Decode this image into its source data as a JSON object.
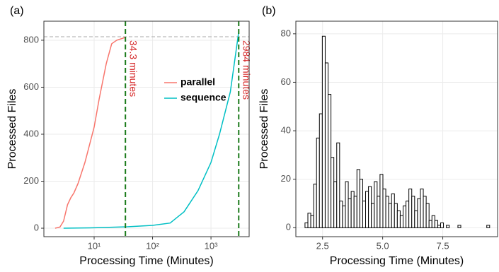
{
  "chart_data": [
    {
      "type": "line",
      "panel_label": "(a)",
      "x_label": "Processing Time (Minutes)",
      "y_label": "Processed Files",
      "xscale": "log",
      "xlim": [
        1.38,
        4500
      ],
      "ylim": [
        -36,
        881
      ],
      "xticks": [
        {
          "value": 10,
          "label": "10¹"
        },
        {
          "value": 100,
          "label": "10²"
        },
        {
          "value": 1000,
          "label": "10³"
        }
      ],
      "yticks": [
        0,
        200,
        400,
        600,
        800
      ],
      "grid": true,
      "hline": 815,
      "annotations": [
        {
          "x": 34.3,
          "text": "34.3 minutes"
        },
        {
          "x": 2984,
          "text": "2984 minutes"
        }
      ],
      "series": [
        {
          "name": "parallel",
          "color": "#f8766d",
          "x": [
            2.15,
            2.6,
            3.0,
            3.5,
            4.0,
            4.5,
            5.3,
            6.95,
            10,
            12.2,
            16.1,
            20,
            24.4,
            34.3
          ],
          "values": [
            0,
            5,
            30,
            100,
            130,
            150,
            190,
            280,
            430,
            550,
            700,
            785,
            800,
            812
          ]
        },
        {
          "name": "sequence",
          "color": "#00bfc4",
          "x": [
            3.0,
            10,
            37,
            100,
            200,
            347,
            600,
            1000,
            1400,
            2140,
            2984
          ],
          "values": [
            0,
            2,
            6,
            12,
            22,
            70,
            160,
            280,
            400,
            580,
            836
          ]
        }
      ]
    },
    {
      "type": "histogram",
      "panel_label": "(b)",
      "x_label": "Processing Time (Minutes)",
      "y_label": "Processed Files",
      "xlim": [
        1.39,
        9.78
      ],
      "ylim": [
        -3.7,
        85.2
      ],
      "xticks": [
        2.5,
        {
          "value": 5,
          "label": "5.0"
        },
        7.5
      ],
      "yticks": [
        0,
        20,
        40,
        60,
        80
      ],
      "grid": true,
      "color": "#ffffff",
      "bins": [
        1.77,
        1.89,
        2.01,
        2.13,
        2.25,
        2.37,
        2.49,
        2.61,
        2.73,
        2.85,
        2.97,
        3.09,
        3.21,
        3.33,
        3.45,
        3.57,
        3.69,
        3.81,
        3.93,
        4.05,
        4.17,
        4.29,
        4.41,
        4.53,
        4.65,
        4.77,
        4.89,
        5.01,
        5.13,
        5.25,
        5.37,
        5.49,
        5.61,
        5.73,
        5.85,
        5.97,
        6.09,
        6.21,
        6.33,
        6.45,
        6.57,
        6.69,
        6.81,
        6.93,
        7.05,
        7.17,
        7.29,
        7.41,
        7.53,
        7.65,
        7.77,
        7.89,
        8.01,
        8.13,
        8.25,
        8.37,
        8.49,
        8.61,
        8.73,
        8.85,
        8.97,
        9.09,
        9.21,
        9.33,
        9.45
      ],
      "values": [
        2,
        6,
        5,
        18,
        37,
        47,
        79,
        68,
        55,
        29,
        19,
        35,
        11,
        9,
        19,
        12,
        15,
        13,
        24,
        20,
        11,
        15,
        17,
        10,
        19,
        13,
        22,
        16,
        13,
        10,
        14,
        10,
        7,
        5,
        9,
        11,
        16,
        13,
        7,
        12,
        16,
        13,
        10,
        3,
        5,
        3,
        1,
        2,
        0,
        1,
        0,
        0,
        0,
        1,
        0,
        0,
        0,
        0,
        0,
        0,
        0,
        0,
        0,
        1
      ]
    }
  ]
}
